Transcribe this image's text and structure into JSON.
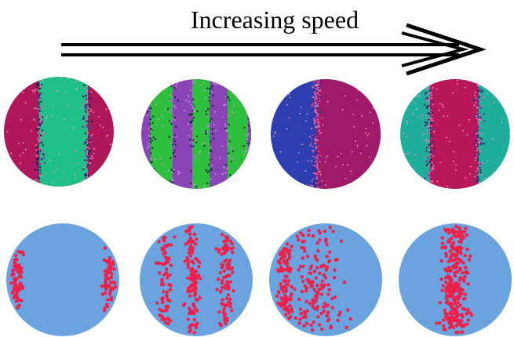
{
  "title": "Increasing speed"
}
